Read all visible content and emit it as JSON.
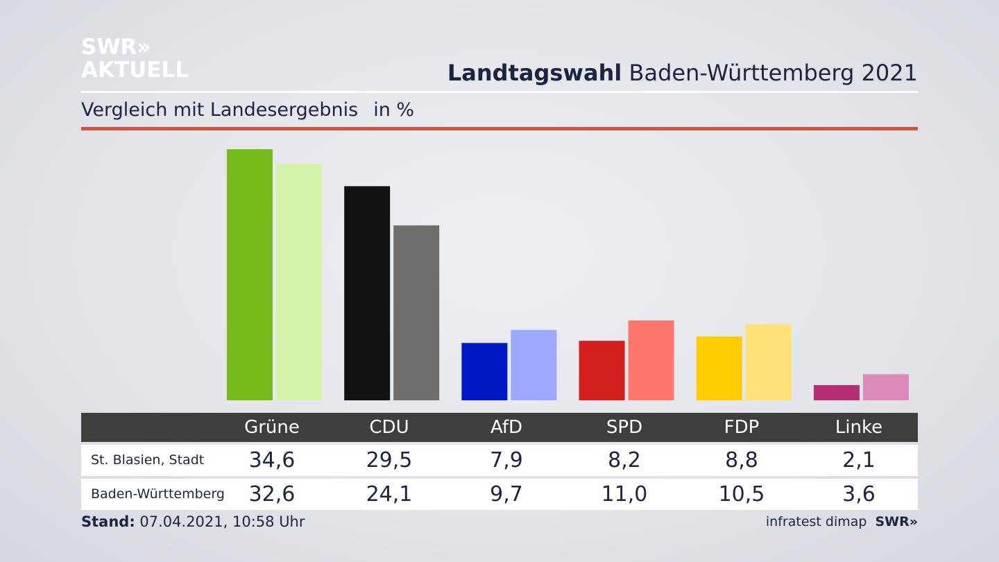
{
  "brand": {
    "line1": "SWR»",
    "line2": "AKTUELL"
  },
  "header": {
    "title_bold": "Landtagswahl",
    "title_rest": "Baden-Württemberg 2021"
  },
  "subtitle": {
    "text": "Vergleich mit Landesergebnis",
    "unit": "in %"
  },
  "chart_data": {
    "type": "bar",
    "title": "Landtagswahl Baden-Württemberg 2021",
    "subtitle": "Vergleich mit Landesergebnis in %",
    "categories": [
      "Grüne",
      "CDU",
      "AfD",
      "SPD",
      "FDP",
      "Linke"
    ],
    "series": [
      {
        "name": "St. Blasien, Stadt",
        "values": [
          34.6,
          29.5,
          7.9,
          8.2,
          8.8,
          2.1
        ]
      },
      {
        "name": "Baden-Württemberg",
        "values": [
          32.6,
          24.1,
          9.7,
          11.0,
          10.5,
          3.6
        ]
      }
    ],
    "colors": [
      [
        "#78bc1b",
        "#d4f3a9"
      ],
      [
        "#121212",
        "#6f6e6c"
      ],
      [
        "#0019c6",
        "#9da9ff"
      ],
      [
        "#d51f1f",
        "#ff766d"
      ],
      [
        "#ffcd00",
        "#ffe276"
      ],
      [
        "#b82e72",
        "#de8ab9"
      ]
    ],
    "ylim": [
      0,
      35
    ],
    "grid": false,
    "legend": "table-below"
  },
  "table": {
    "headers": [
      "Grüne",
      "CDU",
      "AfD",
      "SPD",
      "FDP",
      "Linke"
    ],
    "rows": [
      {
        "label": "St. Blasien, Stadt",
        "values": [
          "34,6",
          "29,5",
          "7,9",
          "8,2",
          "8,8",
          "2,1"
        ]
      },
      {
        "label": "Baden-Württemberg",
        "values": [
          "32,6",
          "24,1",
          "9,7",
          "11,0",
          "10,5",
          "3,6"
        ]
      }
    ]
  },
  "footer": {
    "stand_label": "Stand:",
    "stand_value": "07.04.2021, 10:58 Uhr",
    "source": "infratest dimap",
    "brand": "SWR»"
  }
}
